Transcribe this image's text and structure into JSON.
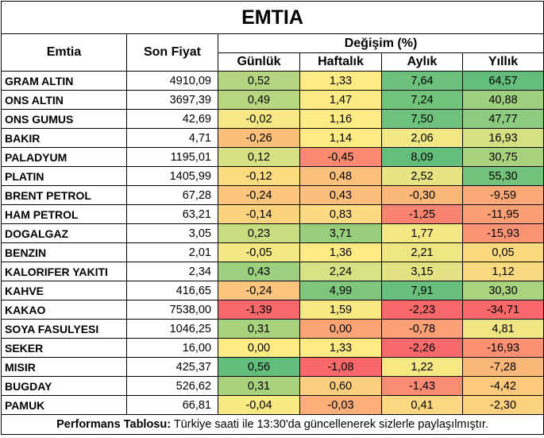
{
  "title": "EMTIA",
  "headers": {
    "emtia": "Emtia",
    "son_fiyat": "Son Fiyat",
    "degisim": "Değişim (%)",
    "gunluk": "Günlük",
    "haftalik": "Haftalık",
    "aylik": "Aylık",
    "yillik": "Yıllık"
  },
  "rows": [
    {
      "name": "GRAM ALTIN",
      "price": "4910,09",
      "d": "0,52",
      "w": "1,33",
      "m": "7,64",
      "y": "64,57"
    },
    {
      "name": "ONS ALTIN",
      "price": "3697,39",
      "d": "0,49",
      "w": "1,47",
      "m": "7,24",
      "y": "40,88"
    },
    {
      "name": "ONS GUMUS",
      "price": "42,69",
      "d": "-0,02",
      "w": "1,16",
      "m": "7,50",
      "y": "47,77"
    },
    {
      "name": "BAKIR",
      "price": "4,71",
      "d": "-0,26",
      "w": "1,14",
      "m": "2,06",
      "y": "16,93"
    },
    {
      "name": "PALADYUM",
      "price": "1195,01",
      "d": "0,12",
      "w": "-0,45",
      "m": "8,09",
      "y": "30,75"
    },
    {
      "name": "PLATIN",
      "price": "1405,99",
      "d": "-0,12",
      "w": "0,48",
      "m": "2,52",
      "y": "55,30"
    },
    {
      "name": "BRENT PETROL",
      "price": "67,28",
      "d": "-0,24",
      "w": "0,43",
      "m": "-0,30",
      "y": "-9,59"
    },
    {
      "name": "HAM PETROL",
      "price": "63,21",
      "d": "-0,14",
      "w": "0,83",
      "m": "-1,25",
      "y": "-11,95"
    },
    {
      "name": "DOGALGAZ",
      "price": "3,05",
      "d": "0,23",
      "w": "3,71",
      "m": "1,77",
      "y": "-15,93"
    },
    {
      "name": "BENZIN",
      "price": "2,01",
      "d": "-0,05",
      "w": "1,36",
      "m": "2,21",
      "y": "0,05"
    },
    {
      "name": "KALORIFER YAKITI",
      "price": "2,34",
      "d": "0,43",
      "w": "2,24",
      "m": "3,15",
      "y": "1,12"
    },
    {
      "name": "KAHVE",
      "price": "416,65",
      "d": "-0,24",
      "w": "4,99",
      "m": "7,91",
      "y": "30,30"
    },
    {
      "name": "KAKAO",
      "price": "7538,00",
      "d": "-1,39",
      "w": "1,59",
      "m": "-2,23",
      "y": "-34,71"
    },
    {
      "name": "SOYA FASULYESI",
      "price": "1046,25",
      "d": "0,31",
      "w": "0,00",
      "m": "-0,78",
      "y": "4,81"
    },
    {
      "name": "SEKER",
      "price": "16,00",
      "d": "0,00",
      "w": "1,33",
      "m": "-2,26",
      "y": "-16,93"
    },
    {
      "name": "MISIR",
      "price": "425,37",
      "d": "0,56",
      "w": "-1,08",
      "m": "1,22",
      "y": "-7,28"
    },
    {
      "name": "BUGDAY",
      "price": "526,62",
      "d": "0,31",
      "w": "0,60",
      "m": "-1,43",
      "y": "-4,42"
    },
    {
      "name": "PAMUK",
      "price": "66,81",
      "d": "-0,04",
      "w": "-0,03",
      "m": "0,41",
      "y": "-2,30"
    }
  ],
  "colors": {
    "d": [
      "#b5d580",
      "#b9d780",
      "#f6e884",
      "#fbbf7c",
      "#d6e183",
      "#fbdc80",
      "#fbc57d",
      "#fbd47f",
      "#c8dd82",
      "#f3e884",
      "#9ccf7e",
      "#fbc57d",
      "#f8696b",
      "#a9d27f",
      "#ffeb84",
      "#63be7b",
      "#a9d27f",
      "#f7e983"
    ],
    "w": [
      "#ffeb84",
      "#fcea84",
      "#ffeb84",
      "#ffeb84",
      "#f98a70",
      "#fcc27d",
      "#fcbe7c",
      "#fcda81",
      "#99ce7e",
      "#ffeb84",
      "#d7e283",
      "#7fc67d",
      "#f8e984",
      "#fba576",
      "#ffeb84",
      "#f8696b",
      "#fccf7e",
      "#fbaf78"
    ],
    "m": [
      "#6cc17c",
      "#72c37c",
      "#6ec27c",
      "#f1e784",
      "#63be7b",
      "#e7e483",
      "#fcb87a",
      "#f98571",
      "#f4e884",
      "#eee683",
      "#e3e383",
      "#68c07c",
      "#f8696b",
      "#fca075",
      "#f8696b",
      "#f6e984",
      "#f98c72",
      "#fcd980"
    ],
    "y": [
      "#63be7b",
      "#9fd07f",
      "#8dcb7e",
      "#d4e082",
      "#a9d27f",
      "#74c37c",
      "#fbaa77",
      "#fba075",
      "#fb9474",
      "#fbda80",
      "#fada80",
      "#aad37f",
      "#f8696b",
      "#f0e683",
      "#fb9072",
      "#fcb87a",
      "#fcc97d",
      "#fcd27f"
    ]
  },
  "footer": {
    "label": "Performans Tablosu:",
    "text": " Türkiye saati ile 13:30'da güncellenerek sizlerle paylaşılmıştır."
  }
}
